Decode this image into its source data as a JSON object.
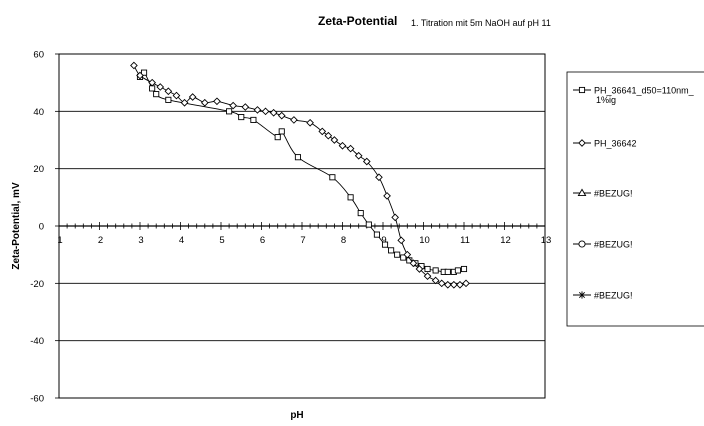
{
  "chart_data": {
    "type": "scatter",
    "title": "Zeta-Potential",
    "subtitle": "1. Titration mit 5m NaOH auf pH 11",
    "xlabel": "pH",
    "ylabel": "Zeta-Potential, mV",
    "xlim": [
      1,
      13
    ],
    "ylim": [
      -60,
      60
    ],
    "x_ticks": [
      "1",
      "2",
      "3",
      "4",
      "5",
      "6",
      "7",
      "8",
      "9",
      "10",
      "11",
      "12",
      "13"
    ],
    "y_ticks": [
      "60",
      "40",
      "20",
      "0",
      "-20",
      "-40",
      "-60"
    ],
    "grid": "horizontal",
    "legend_position": "right",
    "colors": {
      "series": "#000000",
      "grid": "#000000",
      "background": "#ffffff"
    },
    "series": [
      {
        "name": "PH_36641_d50=110nm_ 1%ig",
        "marker": "square",
        "x": [
          3.0,
          3.1,
          3.3,
          3.4,
          3.7,
          5.2,
          5.5,
          5.8,
          6.4,
          6.5,
          6.9,
          7.75,
          8.2,
          8.45,
          8.65,
          8.85,
          9.05,
          9.2,
          9.35,
          9.5,
          9.65,
          9.8,
          9.95,
          10.1,
          10.3,
          10.5,
          10.6,
          10.75,
          10.85,
          11.0
        ],
        "values": [
          52.0,
          53.5,
          48.0,
          46.0,
          44.0,
          40.0,
          38.0,
          37.0,
          31.0,
          33.0,
          24.0,
          17.0,
          10.0,
          4.5,
          0.5,
          -3.0,
          -6.5,
          -8.5,
          -10.0,
          -11.0,
          -12.0,
          -13.0,
          -14.0,
          -15.0,
          -15.5,
          -16.0,
          -16.0,
          -16.0,
          -15.5,
          -15.0
        ]
      },
      {
        "name": "PH_36642",
        "marker": "diamond",
        "x": [
          2.85,
          3.0,
          3.3,
          3.5,
          3.7,
          3.9,
          4.1,
          4.3,
          4.6,
          4.9,
          5.3,
          5.6,
          5.9,
          6.1,
          6.3,
          6.5,
          6.8,
          7.2,
          7.5,
          7.65,
          7.8,
          8.0,
          8.2,
          8.4,
          8.6,
          8.9,
          9.1,
          9.3,
          9.45,
          9.6,
          9.75,
          9.9,
          10.1,
          10.3,
          10.45,
          10.6,
          10.75,
          10.9,
          11.05
        ],
        "values": [
          56.0,
          52.5,
          50.0,
          48.5,
          47.0,
          45.5,
          43.0,
          45.0,
          43.0,
          43.5,
          42.0,
          41.5,
          40.5,
          40.0,
          39.5,
          38.5,
          37.0,
          36.0,
          33.0,
          31.5,
          30.0,
          28.0,
          27.0,
          24.5,
          22.5,
          17.0,
          10.5,
          3.0,
          -5.0,
          -10.0,
          -13.0,
          -15.0,
          -17.5,
          -19.0,
          -20.0,
          -20.5,
          -20.5,
          -20.5,
          -20.0
        ]
      },
      {
        "name": "#BEZUG!",
        "marker": "triangle",
        "x": [],
        "values": []
      },
      {
        "name": "#BEZUG!",
        "marker": "circle",
        "x": [],
        "values": []
      },
      {
        "name": "#BEZUG!",
        "marker": "star",
        "x": [],
        "values": []
      }
    ]
  }
}
